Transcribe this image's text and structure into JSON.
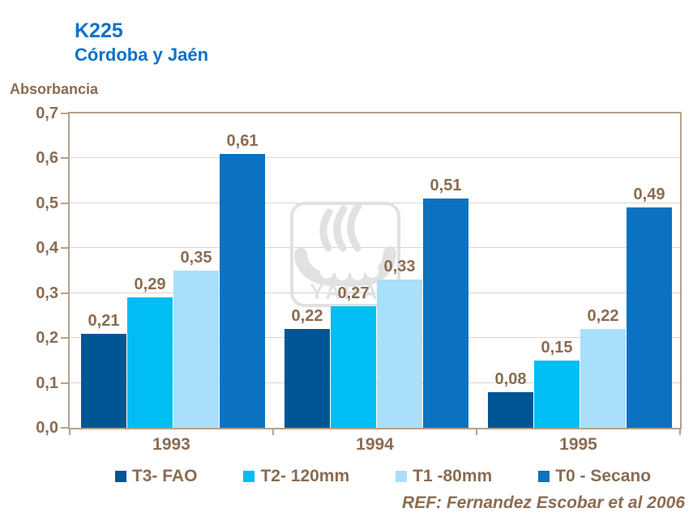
{
  "header": {
    "title": "K225",
    "subtitle": "Córdoba y Jaén"
  },
  "y_axis_title": "Absorbancia",
  "reference": "REF: Fernandez Escobar et al 2006",
  "watermark": {
    "text": "YARA"
  },
  "colors": {
    "title_blue": "#0B72C6",
    "text_brown": "#8A6C52",
    "axis_tan": "#B3A28E",
    "gridline": "#DCD5CB",
    "watermark_gray": "#E1E1E1"
  },
  "chart_data": {
    "type": "bar",
    "title": "K225",
    "subtitle": "Córdoba y Jaén",
    "categories": [
      "1993",
      "1994",
      "1995"
    ],
    "series": [
      {
        "name": "T3- FAO",
        "color": "#005695",
        "values": [
          0.21,
          0.22,
          0.08
        ]
      },
      {
        "name": "T2- 120mm",
        "color": "#00BDF4",
        "values": [
          0.29,
          0.27,
          0.15
        ]
      },
      {
        "name": "T1 -80mm",
        "color": "#A9DFFB",
        "values": [
          0.35,
          0.33,
          0.22
        ]
      },
      {
        "name": "T0 - Secano",
        "color": "#0A72C0",
        "values": [
          0.61,
          0.51,
          0.49
        ]
      }
    ],
    "xlabel": "",
    "ylabel": "Absorbancia",
    "ylim": [
      0,
      0.7
    ],
    "ytick_step": 0.1,
    "ytick_labels": [
      "0,0",
      "0,1",
      "0,2",
      "0,3",
      "0,4",
      "0,5",
      "0,6",
      "0,7"
    ],
    "decimal_separator": ",",
    "grid": true,
    "legend_position": "bottom",
    "value_labels": true
  }
}
